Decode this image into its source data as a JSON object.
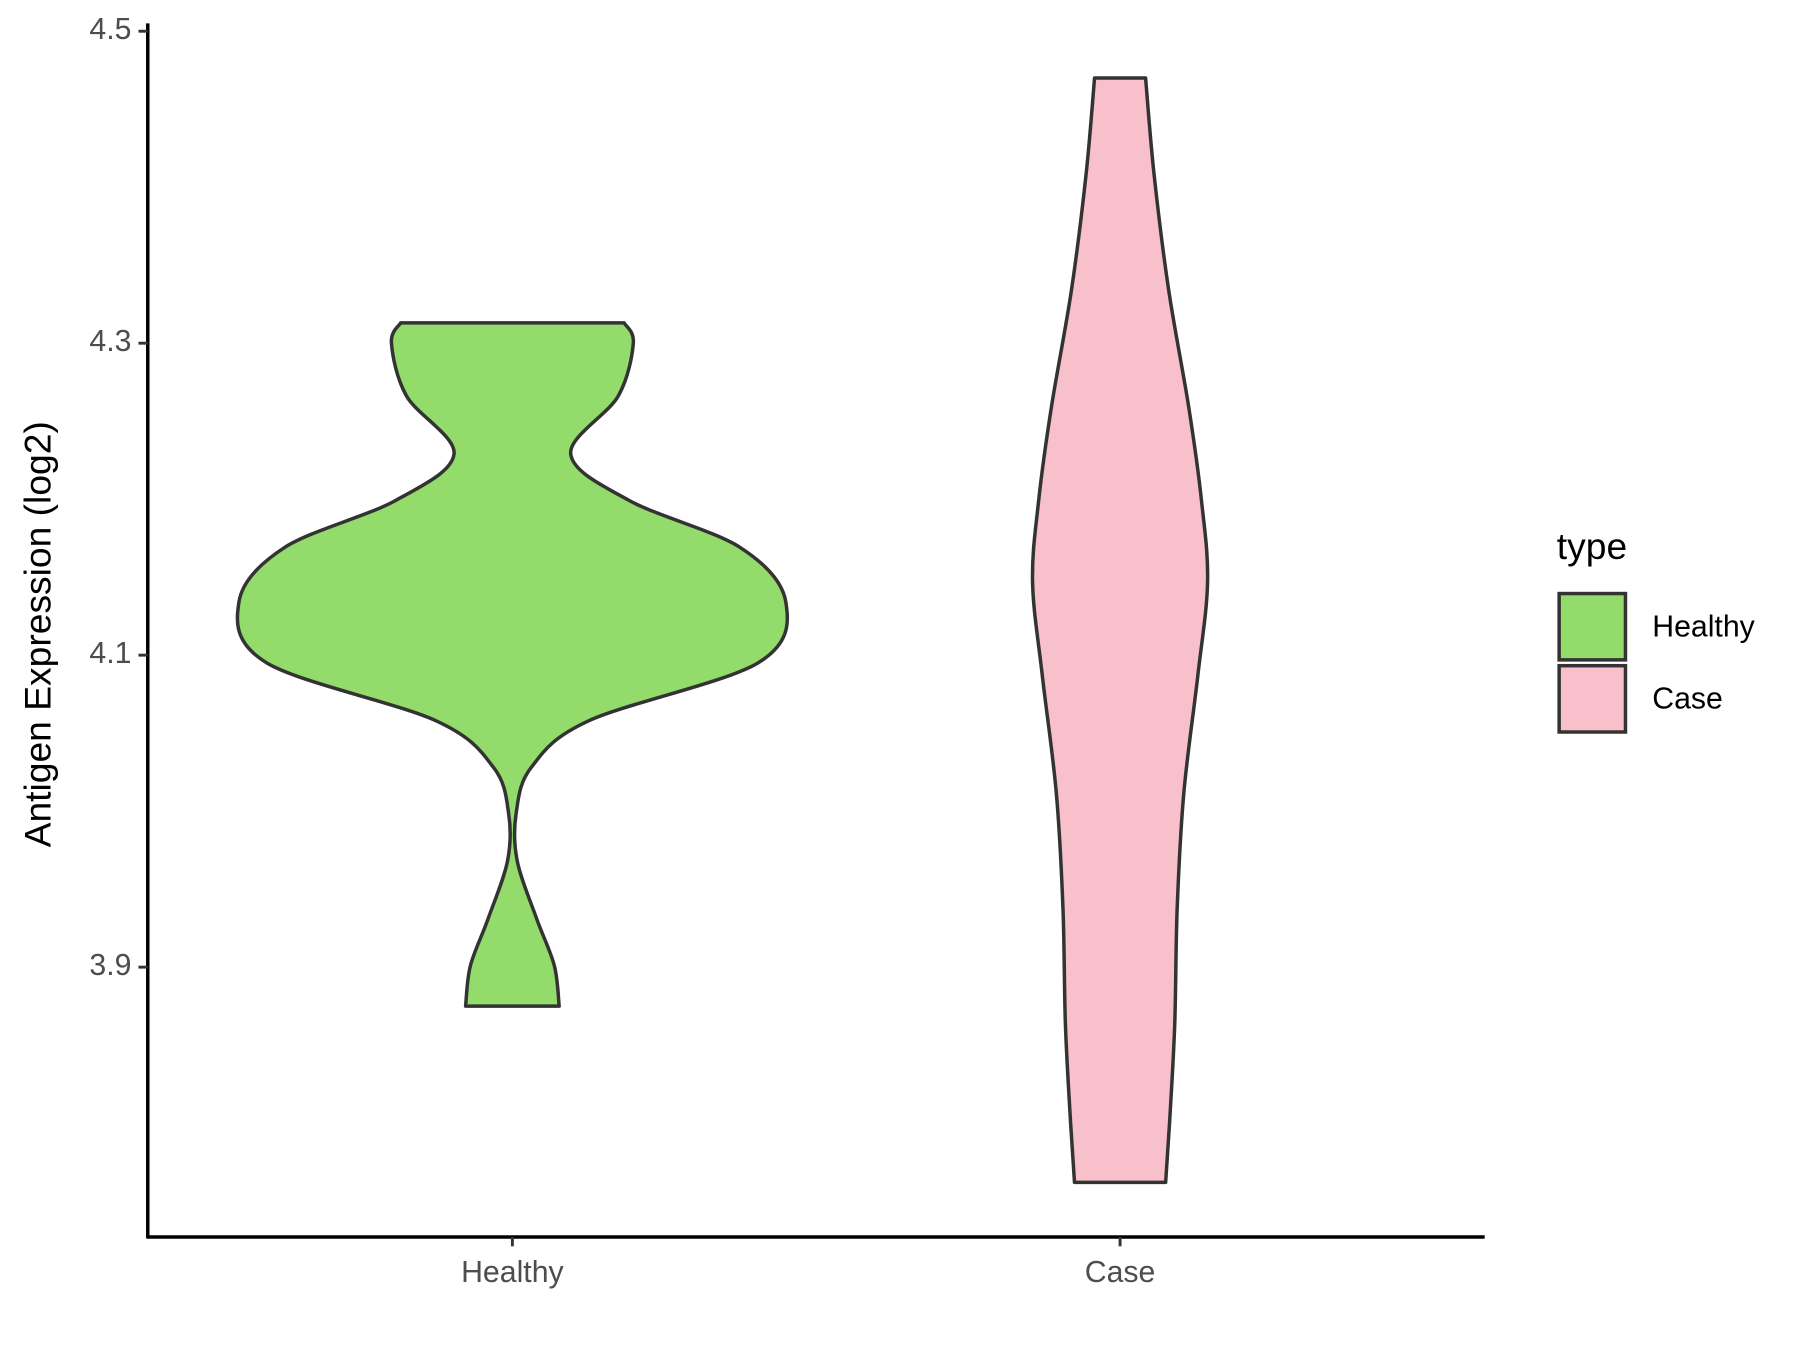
{
  "chart_data": {
    "type": "violin",
    "y_label": "Antigen Expression (log2)",
    "legend_title": "type",
    "categories": [
      "Healthy",
      "Case"
    ],
    "series": [
      {
        "name": "Healthy",
        "color": "#93dc6b",
        "y": [
          4.313,
          4.3,
          4.266,
          4.229,
          4.199,
          4.169,
          4.134,
          4.095,
          4.058,
          4.028,
          3.998,
          3.968,
          3.931,
          3.901,
          3.875
        ],
        "width": [
          0.184,
          0.199,
          0.174,
          0.096,
          0.193,
          0.375,
          0.45,
          0.404,
          0.126,
          0.031,
          0.006,
          0.008,
          0.04,
          0.069,
          0.077
        ]
      },
      {
        "name": "Case",
        "color": "#f7c0cb",
        "y": [
          4.47,
          4.408,
          4.334,
          4.259,
          4.199,
          4.147,
          4.087,
          4.012,
          3.938,
          3.864,
          3.804,
          3.762
        ],
        "width": [
          0.042,
          0.056,
          0.08,
          0.113,
          0.134,
          0.144,
          0.128,
          0.105,
          0.094,
          0.09,
          0.082,
          0.075
        ]
      }
    ],
    "ylim": [
      3.727,
      4.505
    ],
    "yticks": [
      3.9,
      4.1,
      4.3,
      4.5
    ],
    "legend_position": "right"
  }
}
